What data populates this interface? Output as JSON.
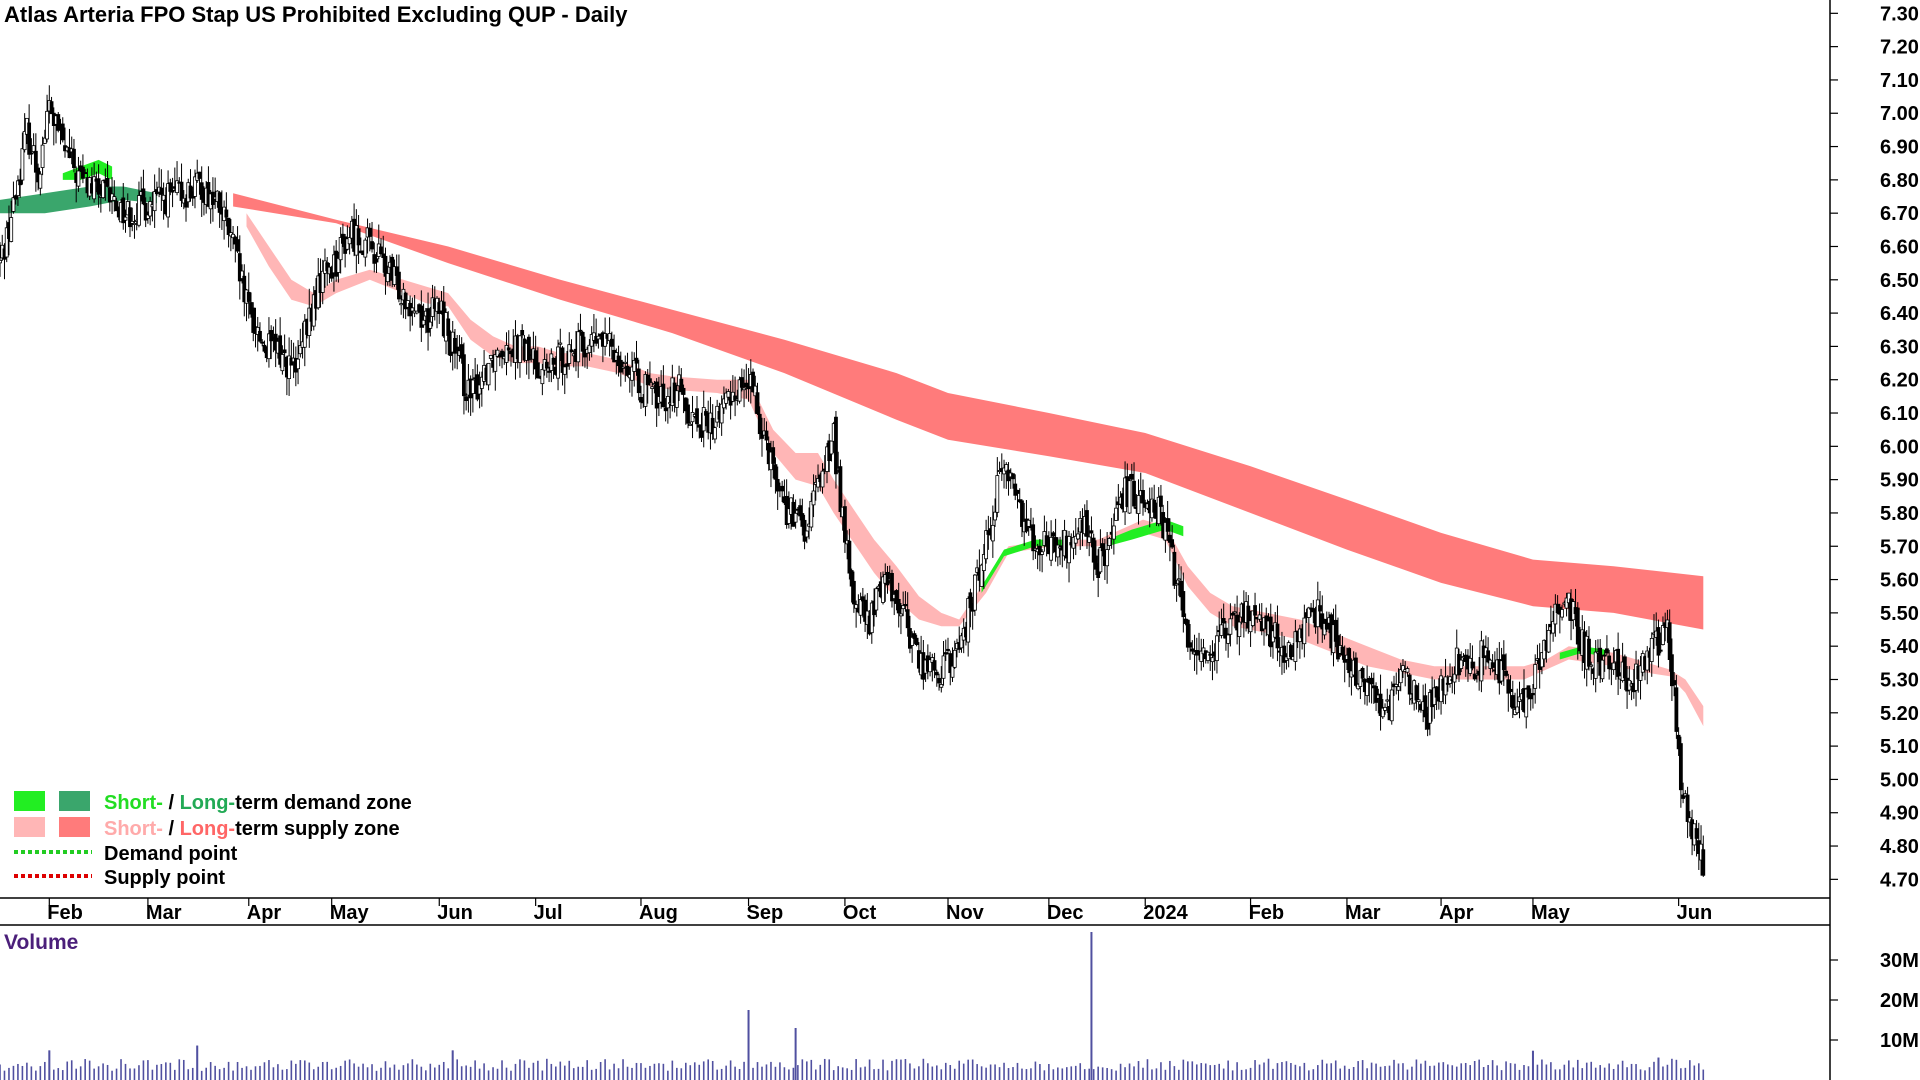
{
  "chart_data": {
    "type": "candlestick",
    "title": "Atlas Arteria FPO Stap US Prohibited Excluding QUP - Daily",
    "price_axis": {
      "ticks": [
        "7.30",
        "7.20",
        "7.10",
        "7.00",
        "6.90",
        "6.80",
        "6.70",
        "6.60",
        "6.50",
        "6.40",
        "6.30",
        "6.20",
        "6.10",
        "6.00",
        "5.90",
        "5.80",
        "5.70",
        "5.60",
        "5.50",
        "5.40",
        "5.30",
        "5.20",
        "5.10",
        "5.00",
        "4.90",
        "4.80",
        "4.70"
      ],
      "ylim": [
        4.65,
        7.34
      ]
    },
    "x_axis": {
      "ticks": [
        "Feb",
        "Mar",
        "Apr",
        "May",
        "Jun",
        "Jul",
        "Aug",
        "Sep",
        "Oct",
        "Nov",
        "Dec",
        "2024",
        "Feb",
        "Mar",
        "Apr",
        "May",
        "Jun"
      ],
      "tick_positions_days": [
        22,
        66,
        111,
        148,
        196,
        239,
        286,
        334,
        377,
        423,
        468,
        511,
        558,
        601,
        643,
        684,
        749
      ],
      "xlim": [
        0,
        792
      ]
    },
    "volume_panel": {
      "title": "Volume",
      "ticks": [
        "30M",
        "20M",
        "10M"
      ],
      "tick_values": [
        30,
        20,
        10
      ],
      "ylim": [
        0,
        38
      ],
      "bars": [
        {
          "day": 22,
          "value": 7.4
        },
        {
          "day": 88,
          "value": 8.6
        },
        {
          "day": 202,
          "value": 7.4
        },
        {
          "day": 334,
          "value": 17.5
        },
        {
          "day": 355,
          "value": 13.0
        },
        {
          "day": 487,
          "value": 37.0
        },
        {
          "day": 684,
          "value": 7.3
        },
        {
          "day": 740,
          "value": 5.6
        }
      ],
      "baseline_volume": 3.8
    },
    "legend": [
      {
        "label_short": "Short-",
        "sep": " / ",
        "label_long": "Long-",
        "rest": "term demand zone",
        "color_short": "#22ee22",
        "color_long": "#3aa66c"
      },
      {
        "label_short": "Short-",
        "sep": " / ",
        "label_long": "Long-",
        "rest": "term supply zone",
        "color_short": "#ffb3b3",
        "color_long": "#ff7777"
      },
      {
        "label": "Demand point",
        "color": "#22cc22"
      },
      {
        "label": "Supply point",
        "color": "#dd0000"
      }
    ],
    "colors": {
      "long_supply": "#ff7b7b",
      "short_supply": "#ffb6b6",
      "short_supply_cross": "#ff6a1a",
      "short_demand": "#22ee22",
      "long_demand": "#3aa66c",
      "candle_up": "#ffffff",
      "candle_down": "#000000",
      "volume": "#5050a0"
    },
    "price_path": [
      [
        0,
        6.55
      ],
      [
        6,
        6.72
      ],
      [
        12,
        6.95
      ],
      [
        17,
        6.82
      ],
      [
        22,
        7.02
      ],
      [
        27,
        6.92
      ],
      [
        34,
        6.82
      ],
      [
        40,
        6.78
      ],
      [
        50,
        6.74
      ],
      [
        56,
        6.7
      ],
      [
        64,
        6.72
      ],
      [
        72,
        6.74
      ],
      [
        82,
        6.76
      ],
      [
        90,
        6.78
      ],
      [
        98,
        6.72
      ],
      [
        104,
        6.6
      ],
      [
        110,
        6.42
      ],
      [
        118,
        6.3
      ],
      [
        125,
        6.28
      ],
      [
        132,
        6.22
      ],
      [
        138,
        6.38
      ],
      [
        144,
        6.52
      ],
      [
        150,
        6.56
      ],
      [
        156,
        6.64
      ],
      [
        162,
        6.62
      ],
      [
        168,
        6.58
      ],
      [
        175,
        6.5
      ],
      [
        182,
        6.45
      ],
      [
        190,
        6.38
      ],
      [
        196,
        6.42
      ],
      [
        203,
        6.28
      ],
      [
        210,
        6.14
      ],
      [
        218,
        6.26
      ],
      [
        226,
        6.32
      ],
      [
        232,
        6.3
      ],
      [
        238,
        6.26
      ],
      [
        245,
        6.22
      ],
      [
        252,
        6.28
      ],
      [
        260,
        6.3
      ],
      [
        268,
        6.32
      ],
      [
        276,
        6.28
      ],
      [
        286,
        6.18
      ],
      [
        294,
        6.14
      ],
      [
        302,
        6.18
      ],
      [
        310,
        6.08
      ],
      [
        318,
        6.06
      ],
      [
        326,
        6.16
      ],
      [
        334,
        6.2
      ],
      [
        342,
        6.02
      ],
      [
        350,
        5.82
      ],
      [
        360,
        5.74
      ],
      [
        366,
        5.92
      ],
      [
        372,
        6.02
      ],
      [
        380,
        5.56
      ],
      [
        388,
        5.46
      ],
      [
        394,
        5.62
      ],
      [
        402,
        5.52
      ],
      [
        410,
        5.36
      ],
      [
        418,
        5.32
      ],
      [
        426,
        5.36
      ],
      [
        434,
        5.54
      ],
      [
        442,
        5.78
      ],
      [
        448,
        5.96
      ],
      [
        454,
        5.84
      ],
      [
        460,
        5.74
      ],
      [
        468,
        5.7
      ],
      [
        476,
        5.7
      ],
      [
        484,
        5.76
      ],
      [
        490,
        5.64
      ],
      [
        496,
        5.72
      ],
      [
        502,
        5.86
      ],
      [
        510,
        5.86
      ],
      [
        516,
        5.82
      ],
      [
        522,
        5.7
      ],
      [
        530,
        5.42
      ],
      [
        538,
        5.38
      ],
      [
        546,
        5.42
      ],
      [
        552,
        5.48
      ],
      [
        558,
        5.5
      ],
      [
        566,
        5.46
      ],
      [
        574,
        5.36
      ],
      [
        582,
        5.44
      ],
      [
        588,
        5.52
      ],
      [
        596,
        5.4
      ],
      [
        604,
        5.32
      ],
      [
        612,
        5.26
      ],
      [
        620,
        5.22
      ],
      [
        628,
        5.32
      ],
      [
        636,
        5.18
      ],
      [
        642,
        5.28
      ],
      [
        650,
        5.36
      ],
      [
        656,
        5.32
      ],
      [
        664,
        5.4
      ],
      [
        672,
        5.3
      ],
      [
        680,
        5.2
      ],
      [
        688,
        5.38
      ],
      [
        694,
        5.5
      ],
      [
        700,
        5.54
      ],
      [
        706,
        5.4
      ],
      [
        712,
        5.36
      ],
      [
        720,
        5.36
      ],
      [
        728,
        5.3
      ],
      [
        734,
        5.36
      ],
      [
        740,
        5.42
      ],
      [
        744,
        5.46
      ],
      [
        747,
        5.24
      ],
      [
        750,
        4.98
      ],
      [
        753,
        4.88
      ],
      [
        757,
        4.8
      ],
      [
        760,
        4.74
      ]
    ],
    "long_supply_band": {
      "upper": [
        [
          104,
          6.76
        ],
        [
          150,
          6.68
        ],
        [
          200,
          6.6
        ],
        [
          250,
          6.5
        ],
        [
          300,
          6.41
        ],
        [
          350,
          6.32
        ],
        [
          400,
          6.22
        ],
        [
          423,
          6.16
        ],
        [
          468,
          6.1
        ],
        [
          511,
          6.04
        ],
        [
          558,
          5.94
        ],
        [
          601,
          5.84
        ],
        [
          643,
          5.74
        ],
        [
          684,
          5.66
        ],
        [
          720,
          5.64
        ],
        [
          760,
          5.61
        ]
      ],
      "lower": [
        [
          104,
          6.72
        ],
        [
          150,
          6.67
        ],
        [
          200,
          6.55
        ],
        [
          250,
          6.44
        ],
        [
          300,
          6.34
        ],
        [
          350,
          6.22
        ],
        [
          400,
          6.08
        ],
        [
          423,
          6.02
        ],
        [
          468,
          5.97
        ],
        [
          511,
          5.92
        ],
        [
          558,
          5.8
        ],
        [
          601,
          5.69
        ],
        [
          643,
          5.59
        ],
        [
          684,
          5.52
        ],
        [
          720,
          5.5
        ],
        [
          760,
          5.45
        ]
      ]
    },
    "short_supply_band": {
      "upper": [
        [
          110,
          6.7
        ],
        [
          120,
          6.6
        ],
        [
          130,
          6.5
        ],
        [
          140,
          6.46
        ],
        [
          150,
          6.5
        ],
        [
          165,
          6.53
        ],
        [
          180,
          6.5
        ],
        [
          190,
          6.48
        ],
        [
          200,
          6.46
        ],
        [
          210,
          6.38
        ],
        [
          220,
          6.33
        ],
        [
          230,
          6.3
        ],
        [
          240,
          6.3
        ],
        [
          250,
          6.28
        ],
        [
          262,
          6.28
        ],
        [
          276,
          6.26
        ],
        [
          290,
          6.22
        ],
        [
          300,
          6.21
        ],
        [
          320,
          6.2
        ],
        [
          334,
          6.2
        ],
        [
          345,
          6.05
        ],
        [
          355,
          5.98
        ],
        [
          365,
          5.98
        ],
        [
          372,
          5.9
        ],
        [
          380,
          5.82
        ],
        [
          390,
          5.72
        ],
        [
          400,
          5.64
        ],
        [
          410,
          5.55
        ],
        [
          420,
          5.5
        ],
        [
          428,
          5.48
        ],
        [
          440,
          5.6
        ],
        [
          450,
          5.7
        ],
        [
          470,
          5.72
        ],
        [
          490,
          5.72
        ],
        [
          510,
          5.78
        ],
        [
          520,
          5.76
        ],
        [
          530,
          5.64
        ],
        [
          540,
          5.56
        ],
        [
          550,
          5.52
        ],
        [
          565,
          5.5
        ],
        [
          580,
          5.48
        ],
        [
          595,
          5.44
        ],
        [
          610,
          5.4
        ],
        [
          625,
          5.36
        ],
        [
          640,
          5.34
        ],
        [
          655,
          5.34
        ],
        [
          670,
          5.34
        ],
        [
          680,
          5.34
        ],
        [
          690,
          5.36
        ],
        [
          700,
          5.4
        ],
        [
          720,
          5.38
        ],
        [
          735,
          5.35
        ],
        [
          745,
          5.33
        ],
        [
          752,
          5.3
        ],
        [
          760,
          5.22
        ]
      ],
      "lower": [
        [
          110,
          6.66
        ],
        [
          120,
          6.54
        ],
        [
          130,
          6.44
        ],
        [
          140,
          6.42
        ],
        [
          150,
          6.46
        ],
        [
          165,
          6.5
        ],
        [
          180,
          6.46
        ],
        [
          190,
          6.43
        ],
        [
          200,
          6.42
        ],
        [
          210,
          6.32
        ],
        [
          220,
          6.27
        ],
        [
          230,
          6.25
        ],
        [
          240,
          6.25
        ],
        [
          250,
          6.24
        ],
        [
          262,
          6.24
        ],
        [
          276,
          6.22
        ],
        [
          290,
          6.18
        ],
        [
          300,
          6.17
        ],
        [
          320,
          6.16
        ],
        [
          334,
          6.14
        ],
        [
          345,
          5.98
        ],
        [
          355,
          5.9
        ],
        [
          365,
          5.88
        ],
        [
          372,
          5.8
        ],
        [
          380,
          5.72
        ],
        [
          390,
          5.62
        ],
        [
          400,
          5.54
        ],
        [
          410,
          5.48
        ],
        [
          420,
          5.46
        ],
        [
          428,
          5.46
        ],
        [
          440,
          5.56
        ],
        [
          450,
          5.68
        ],
        [
          470,
          5.7
        ],
        [
          490,
          5.7
        ],
        [
          510,
          5.74
        ],
        [
          520,
          5.72
        ],
        [
          530,
          5.58
        ],
        [
          540,
          5.5
        ],
        [
          550,
          5.46
        ],
        [
          565,
          5.44
        ],
        [
          580,
          5.42
        ],
        [
          595,
          5.38
        ],
        [
          610,
          5.34
        ],
        [
          625,
          5.32
        ],
        [
          640,
          5.3
        ],
        [
          655,
          5.3
        ],
        [
          670,
          5.3
        ],
        [
          680,
          5.3
        ],
        [
          690,
          5.33
        ],
        [
          700,
          5.36
        ],
        [
          720,
          5.34
        ],
        [
          735,
          5.32
        ],
        [
          745,
          5.31
        ],
        [
          752,
          5.26
        ],
        [
          760,
          5.16
        ]
      ]
    },
    "demand_zones": [
      {
        "type": "long",
        "upper": [
          [
            0,
            6.74
          ],
          [
            20,
            6.76
          ],
          [
            40,
            6.78
          ],
          [
            55,
            6.78
          ],
          [
            70,
            6.76
          ]
        ],
        "lower": [
          [
            0,
            6.7
          ],
          [
            20,
            6.7
          ],
          [
            40,
            6.72
          ],
          [
            55,
            6.74
          ],
          [
            70,
            6.73
          ]
        ]
      },
      {
        "type": "short",
        "upper": [
          [
            28,
            6.82
          ],
          [
            36,
            6.84
          ],
          [
            44,
            6.86
          ],
          [
            50,
            6.84
          ]
        ],
        "lower": [
          [
            28,
            6.8
          ],
          [
            36,
            6.8
          ],
          [
            44,
            6.82
          ],
          [
            50,
            6.8
          ]
        ]
      },
      {
        "type": "short",
        "upper": [
          [
            438,
            5.58
          ],
          [
            448,
            5.69
          ],
          [
            462,
            5.72
          ],
          [
            474,
            5.72
          ]
        ],
        "lower": [
          [
            438,
            5.56
          ],
          [
            448,
            5.67
          ],
          [
            462,
            5.7
          ],
          [
            474,
            5.7
          ]
        ]
      },
      {
        "type": "short",
        "upper": [
          [
            494,
            5.72
          ],
          [
            505,
            5.75
          ],
          [
            520,
            5.78
          ],
          [
            528,
            5.76
          ]
        ],
        "lower": [
          [
            494,
            5.7
          ],
          [
            505,
            5.72
          ],
          [
            520,
            5.75
          ],
          [
            528,
            5.73
          ]
        ]
      },
      {
        "type": "short",
        "upper": [
          [
            696,
            5.38
          ],
          [
            706,
            5.4
          ],
          [
            716,
            5.39
          ]
        ],
        "lower": [
          [
            696,
            5.36
          ],
          [
            706,
            5.38
          ],
          [
            716,
            5.37
          ]
        ]
      }
    ]
  },
  "legend_text": {
    "row1_short": "Short-",
    "row1_sep": " / ",
    "row1_long": "Long-",
    "row1_rest": "-term demand zone",
    "row2_short": "Short-",
    "row2_sep": " / ",
    "row2_long": "Long-",
    "row2_rest": "-term supply zone",
    "row3": "Demand point",
    "row4": "Supply point"
  }
}
